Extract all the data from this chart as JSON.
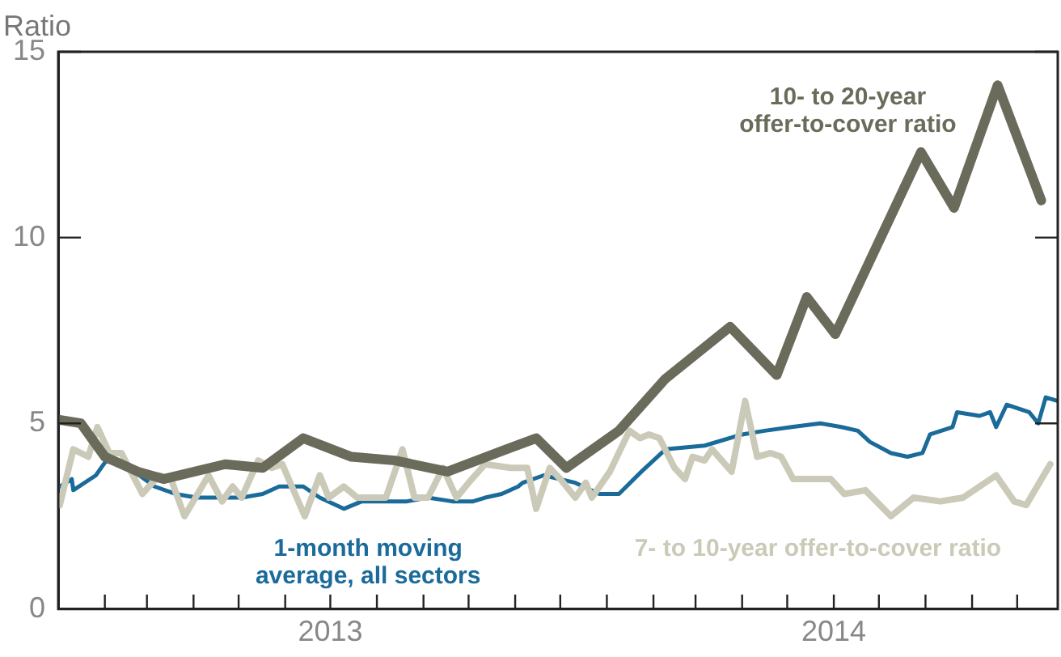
{
  "chart_data": {
    "type": "line",
    "ylabel": "Ratio",
    "xlim": [
      "2013-01-01",
      "2014-10-28"
    ],
    "xticks": [
      {
        "value": "2013-02-01",
        "label": null
      },
      {
        "value": "2013-03-01",
        "label": null
      },
      {
        "value": "2013-04-01",
        "label": null
      },
      {
        "value": "2013-05-01",
        "label": null
      },
      {
        "value": "2013-06-01",
        "label": null
      },
      {
        "value": "2013-07-01",
        "label": "2013"
      },
      {
        "value": "2013-08-01",
        "label": null
      },
      {
        "value": "2013-09-01",
        "label": null
      },
      {
        "value": "2013-10-01",
        "label": null
      },
      {
        "value": "2013-11-01",
        "label": null
      },
      {
        "value": "2013-12-01",
        "label": null
      },
      {
        "value": "2014-01-01",
        "label": null
      },
      {
        "value": "2014-02-01",
        "label": null
      },
      {
        "value": "2014-03-01",
        "label": null
      },
      {
        "value": "2014-04-01",
        "label": null
      },
      {
        "value": "2014-05-01",
        "label": null
      },
      {
        "value": "2014-06-01",
        "label": "2014"
      },
      {
        "value": "2014-07-01",
        "label": null
      },
      {
        "value": "2014-08-01",
        "label": null
      },
      {
        "value": "2014-09-01",
        "label": null
      },
      {
        "value": "2014-10-01",
        "label": null
      }
    ],
    "ylim": [
      0,
      15
    ],
    "yticks": [
      0,
      5,
      10,
      15
    ],
    "series": [
      {
        "name": "10- to 20-year offer-to-cover ratio",
        "color": "#6b6b5b",
        "x": [
          "2013-01-01",
          "2013-01-16",
          "2013-02-01",
          "2013-02-23",
          "2013-03-12",
          "2013-04-22",
          "2013-05-17",
          "2013-06-13",
          "2013-07-15",
          "2013-08-13",
          "2013-09-17",
          "2013-10-26",
          "2013-11-15",
          "2013-12-05",
          "2014-01-09",
          "2014-02-09",
          "2014-03-24",
          "2014-04-24",
          "2014-05-14",
          "2014-06-02",
          "2014-07-29",
          "2014-08-20",
          "2014-09-18",
          "2014-10-17"
        ],
        "values": [
          5.1,
          5.0,
          4.1,
          3.7,
          3.5,
          3.9,
          3.8,
          4.6,
          4.1,
          4.0,
          3.7,
          4.3,
          4.6,
          3.8,
          4.8,
          6.2,
          7.6,
          6.3,
          8.4,
          7.4,
          12.3,
          10.8,
          14.1,
          11.0
        ]
      },
      {
        "name": "7- to 10-year offer-to-cover ratio",
        "color": "#cbcab8",
        "x": [
          "2013-01-02",
          "2013-01-11",
          "2013-01-21",
          "2013-01-27",
          "2013-02-04",
          "2013-02-12",
          "2013-02-26",
          "2013-03-09",
          "2013-03-17",
          "2013-03-26",
          "2013-04-11",
          "2013-04-20",
          "2013-04-27",
          "2013-05-03",
          "2013-05-14",
          "2013-05-23",
          "2013-05-30",
          "2013-06-14",
          "2013-06-24",
          "2013-06-30",
          "2013-07-10",
          "2013-07-19",
          "2013-07-30",
          "2013-08-07",
          "2013-08-18",
          "2013-08-26",
          "2013-09-04",
          "2013-09-14",
          "2013-09-23",
          "2013-10-01",
          "2013-10-12",
          "2013-10-29",
          "2013-11-09",
          "2013-11-15",
          "2013-11-24",
          "2013-12-01",
          "2013-12-11",
          "2013-12-18",
          "2013-12-22",
          "2014-01-03",
          "2014-01-16",
          "2014-01-23",
          "2014-01-29",
          "2014-02-05",
          "2014-02-15",
          "2014-02-22",
          "2014-02-27",
          "2014-03-07",
          "2014-03-12",
          "2014-03-25",
          "2014-04-03",
          "2014-04-11",
          "2014-04-20",
          "2014-04-27",
          "2014-05-05",
          "2014-05-19",
          "2014-05-30",
          "2014-06-08",
          "2014-06-22",
          "2014-07-09",
          "2014-07-24",
          "2014-08-11",
          "2014-08-26",
          "2014-09-17",
          "2014-09-29",
          "2014-10-07",
          "2014-10-23"
        ],
        "values": [
          2.8,
          4.3,
          4.1,
          4.9,
          4.2,
          4.2,
          3.1,
          3.6,
          3.5,
          2.5,
          3.6,
          2.9,
          3.3,
          3.0,
          4.0,
          3.8,
          3.9,
          2.5,
          3.6,
          3.0,
          3.3,
          3.0,
          3.0,
          3.0,
          4.3,
          3.0,
          3.0,
          3.8,
          3.0,
          3.4,
          3.9,
          3.8,
          3.8,
          2.7,
          3.8,
          3.5,
          3.0,
          3.4,
          3.0,
          3.7,
          4.8,
          4.6,
          4.7,
          4.6,
          3.8,
          3.5,
          4.1,
          4.0,
          4.3,
          3.7,
          5.6,
          4.1,
          4.2,
          4.1,
          3.5,
          3.5,
          3.5,
          3.1,
          3.2,
          2.5,
          3.0,
          2.9,
          3.0,
          3.6,
          2.9,
          2.8,
          3.9
        ]
      },
      {
        "name": "1-month moving average, all sectors",
        "color": "#1a6b9a",
        "x": [
          "2013-01-02",
          "2013-01-10",
          "2013-01-11",
          "2013-01-26",
          "2013-02-02",
          "2013-02-15",
          "2013-02-24",
          "2013-03-06",
          "2013-03-20",
          "2013-04-03",
          "2013-04-19",
          "2013-05-03",
          "2013-05-17",
          "2013-05-28",
          "2013-06-13",
          "2013-06-24",
          "2013-07-10",
          "2013-07-22",
          "2013-08-07",
          "2013-08-21",
          "2013-09-04",
          "2013-09-20",
          "2013-10-04",
          "2013-10-12",
          "2013-10-23",
          "2013-11-03",
          "2013-11-06",
          "2013-11-20",
          "2013-12-11",
          "2013-12-27",
          "2014-01-09",
          "2014-01-24",
          "2014-02-09",
          "2014-03-07",
          "2014-04-01",
          "2014-04-16",
          "2014-05-04",
          "2014-05-23",
          "2014-06-06",
          "2014-06-17",
          "2014-06-25",
          "2014-07-09",
          "2014-07-20",
          "2014-07-30",
          "2014-08-04",
          "2014-08-19",
          "2014-08-22",
          "2014-09-06",
          "2014-09-13",
          "2014-09-17",
          "2014-09-24",
          "2014-10-09",
          "2014-10-15",
          "2014-10-20",
          "2014-10-28"
        ],
        "values": [
          3.3,
          3.5,
          3.2,
          3.6,
          4.0,
          3.8,
          3.6,
          3.3,
          3.1,
          3.0,
          3.0,
          3.0,
          3.1,
          3.3,
          3.3,
          3.0,
          2.7,
          2.9,
          2.9,
          2.9,
          3.0,
          2.9,
          2.9,
          3.0,
          3.1,
          3.3,
          3.4,
          3.6,
          3.4,
          3.1,
          3.1,
          3.7,
          4.3,
          4.4,
          4.7,
          4.8,
          4.9,
          5.0,
          4.9,
          4.8,
          4.5,
          4.2,
          4.1,
          4.2,
          4.7,
          4.9,
          5.3,
          5.2,
          5.3,
          4.9,
          5.5,
          5.3,
          5.0,
          5.7,
          5.6
        ]
      }
    ]
  }
}
